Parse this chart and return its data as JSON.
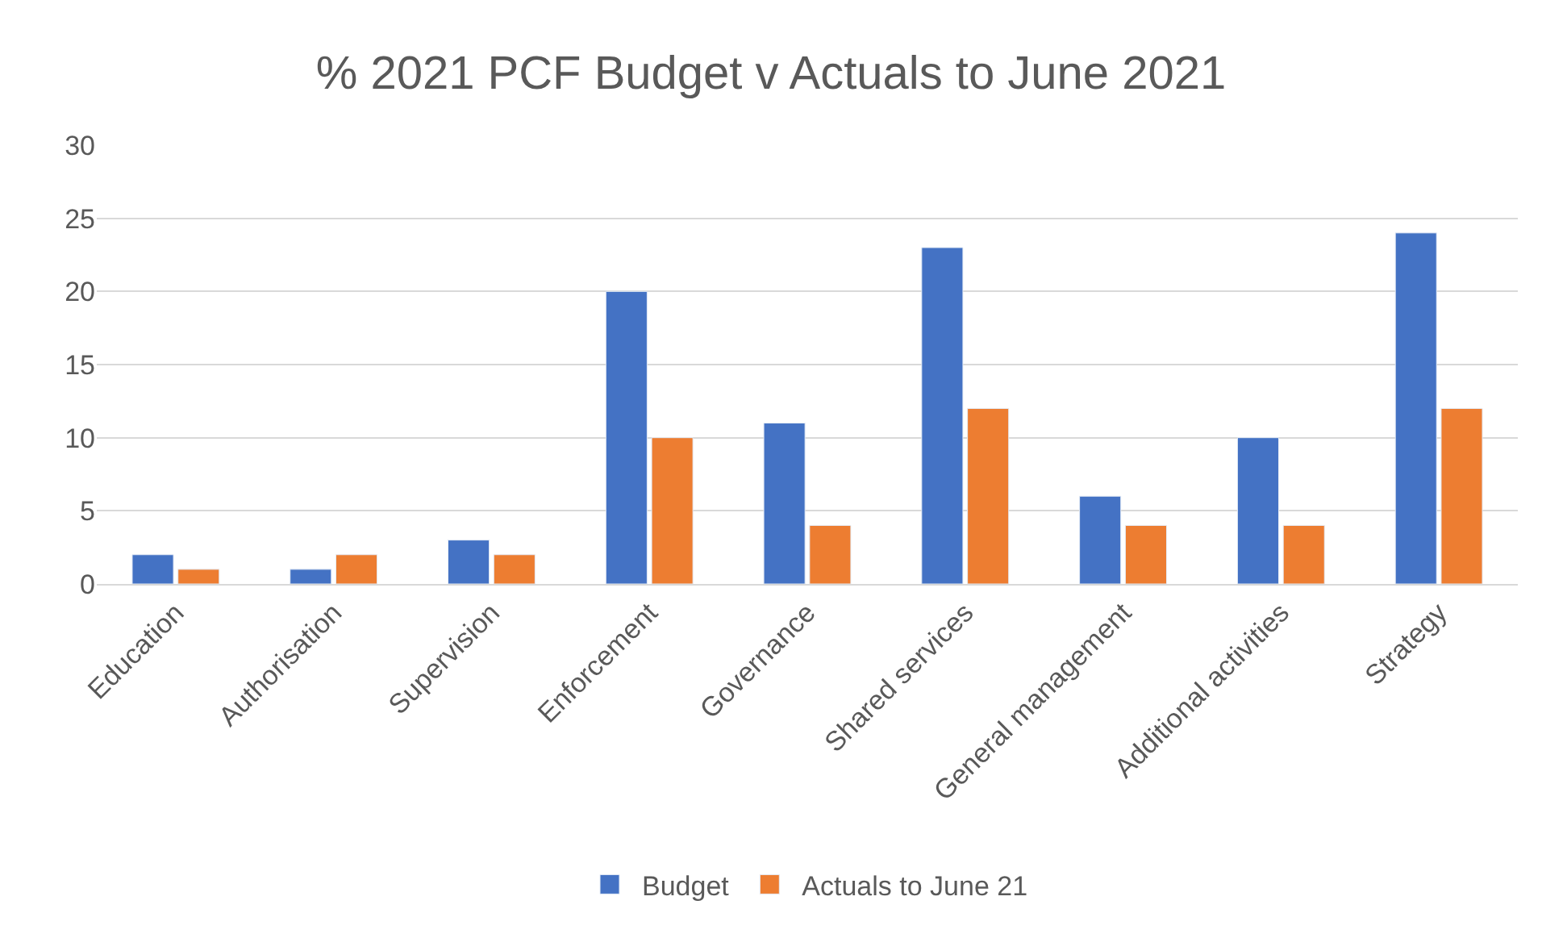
{
  "chart_data": {
    "type": "bar",
    "title": "% 2021 PCF Budget v Actuals to June 2021",
    "categories": [
      "Education",
      "Authorisation",
      "Supervision",
      "Enforcement",
      "Governance",
      "Shared services",
      "General management",
      "Additional activities",
      "Strategy"
    ],
    "series": [
      {
        "name": "Budget",
        "color": "#4472c4",
        "values": [
          2,
          1,
          3,
          20,
          11,
          23,
          6,
          10,
          24
        ]
      },
      {
        "name": "Actuals to June 21",
        "color": "#ed7d31",
        "values": [
          1,
          2,
          2,
          10,
          4,
          12,
          4,
          4,
          12
        ]
      }
    ],
    "ylim": [
      0,
      30
    ],
    "yticks": [
      0,
      5,
      10,
      15,
      20,
      25,
      30
    ],
    "grid": "y",
    "legend": "bottom"
  }
}
